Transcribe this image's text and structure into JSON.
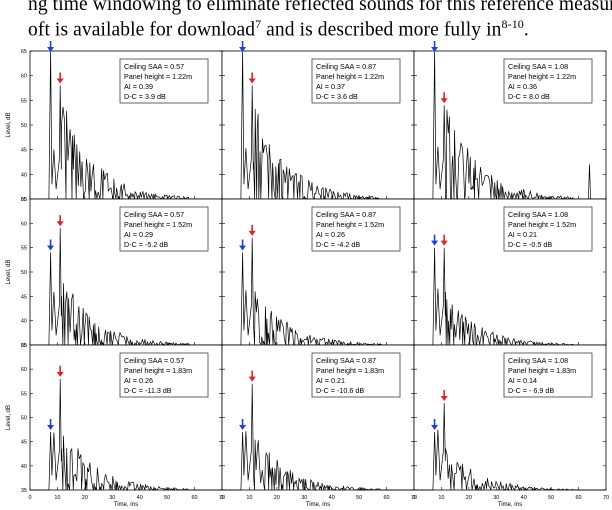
{
  "text": {
    "line1": "ng time windowing to eliminate reflected sounds for this reference measure",
    "line2_pre": "oft is available for download",
    "line2_sup1": "7",
    "line2_mid": " and is described more fully in",
    "line2_sup2": "8-10",
    "line2_post": "."
  },
  "colors": {
    "early_arrow": "#1f3fd6",
    "late_arrow": "#e0202a",
    "trace": "#000000"
  },
  "chart_data": {
    "type": "line",
    "shared_axes": {
      "xlabel": "Time, ms",
      "ylabel": "Level, dB",
      "xlim": [
        0,
        70
      ],
      "ylim": [
        35,
        65
      ],
      "xticks": [
        "0",
        "10",
        "20",
        "30",
        "40",
        "50",
        "60",
        "70"
      ],
      "yticks": [
        "35",
        "40",
        "45",
        "50",
        "55",
        "60",
        "65"
      ]
    },
    "panels": [
      {
        "row": 0,
        "col": 0,
        "ceiling_saa": "Ceiling SAA = 0.57",
        "panel_height": "Panel height = 1.22m",
        "ai": "AI = 0.39",
        "dc": "D-C = 3.9 dB",
        "direct_ms": 7.5,
        "direct_db": 65,
        "reflect_ms": 11,
        "reflect_db": 58
      },
      {
        "row": 0,
        "col": 1,
        "ceiling_saa": "Ceiling SAA = 0.87",
        "panel_height": "Panel height = 1.22m",
        "ai": "AI = 0.37",
        "dc": "D-C = 3.6 dB",
        "direct_ms": 7.5,
        "direct_db": 65,
        "reflect_ms": 11,
        "reflect_db": 58
      },
      {
        "row": 0,
        "col": 2,
        "ceiling_saa": "Ceiling SAA = 1.08",
        "panel_height": "Panel height = 1.22m",
        "ai": "AI = 0.36",
        "dc": "D-C = 8.0 dB",
        "direct_ms": 7.5,
        "direct_db": 65,
        "reflect_ms": 11,
        "reflect_db": 54
      },
      {
        "row": 1,
        "col": 0,
        "ceiling_saa": "Ceiling SAA = 0.57",
        "panel_height": "Panel height = 1.52m",
        "ai": "AI = 0.29",
        "dc": "D-C = -5.2 dB",
        "direct_ms": 7.5,
        "direct_db": 54,
        "reflect_ms": 11,
        "reflect_db": 59
      },
      {
        "row": 1,
        "col": 1,
        "ceiling_saa": "Ceiling SAA = 0.87",
        "panel_height": "Panel height = 1.52m",
        "ai": "AI = 0.26",
        "dc": "D-C = -4.2 dB",
        "direct_ms": 7.5,
        "direct_db": 54,
        "reflect_ms": 11,
        "reflect_db": 57
      },
      {
        "row": 1,
        "col": 2,
        "ceiling_saa": "Ceiling SAA = 1.08",
        "panel_height": "Panel height = 1.52m",
        "ai": "AI = 0.21",
        "dc": "D-C = -0.5 dB",
        "direct_ms": 7.5,
        "direct_db": 55,
        "reflect_ms": 11,
        "reflect_db": 55
      },
      {
        "row": 2,
        "col": 0,
        "ceiling_saa": "Ceiling SAA = 0.57",
        "panel_height": "Panel height = 1.83m",
        "ai": "AI = 0.26",
        "dc": "D-C = -11.3 dB",
        "direct_ms": 7.5,
        "direct_db": 47,
        "reflect_ms": 11,
        "reflect_db": 58
      },
      {
        "row": 2,
        "col": 1,
        "ceiling_saa": "Ceiling SAA = 0.87",
        "panel_height": "Panel height = 1.83m",
        "ai": "AI = 0.21",
        "dc": "D-C = -10.6 dB",
        "direct_ms": 7.5,
        "direct_db": 47,
        "reflect_ms": 11,
        "reflect_db": 57
      },
      {
        "row": 2,
        "col": 2,
        "ceiling_saa": "Ceiling SAA = 1.08",
        "panel_height": "Panel height = 1.83m",
        "ai": "AI = 0.14",
        "dc": "D-C = - 6.9 dB",
        "direct_ms": 7.5,
        "direct_db": 47,
        "reflect_ms": 11,
        "reflect_db": 53
      }
    ]
  }
}
